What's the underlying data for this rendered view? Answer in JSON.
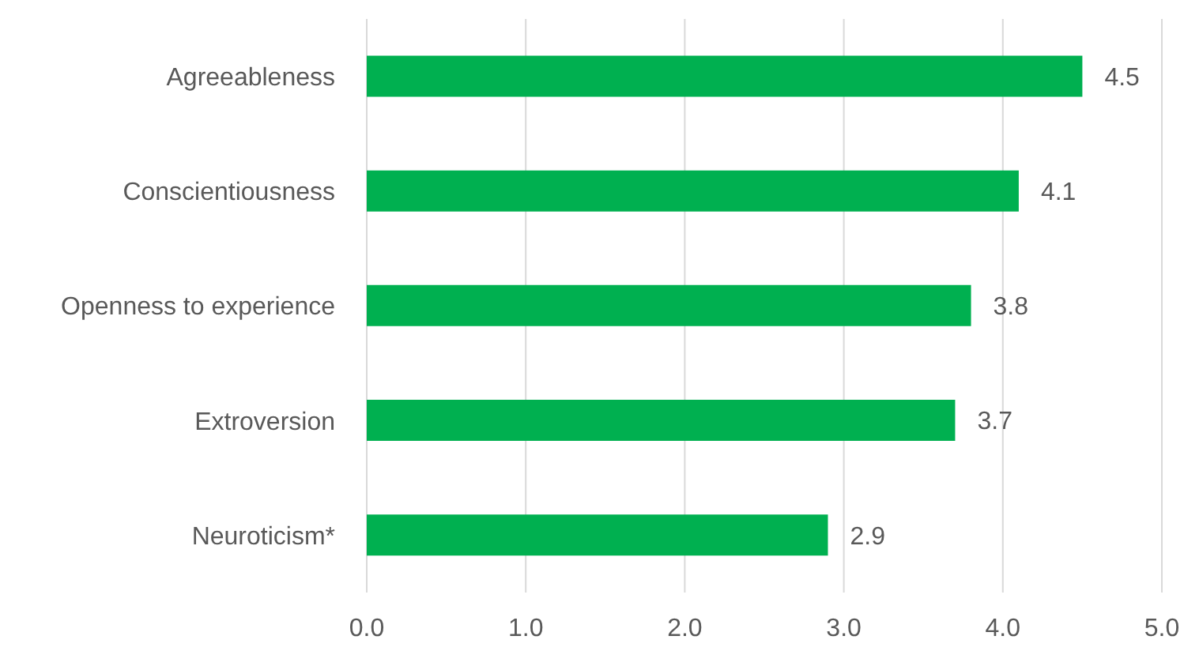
{
  "chart_data": {
    "type": "bar",
    "orientation": "horizontal",
    "categories": [
      "Agreeableness",
      "Conscientiousness",
      "Openness to experience",
      "Extroversion",
      "Neuroticism*"
    ],
    "values": [
      4.5,
      4.1,
      3.8,
      3.7,
      2.9
    ],
    "color": "#00b050",
    "xlim": [
      0,
      5
    ],
    "xticks": [
      {
        "value": 0,
        "label": "0.0"
      },
      {
        "value": 1,
        "label": "1.0"
      },
      {
        "value": 2,
        "label": "2.0"
      },
      {
        "value": 3,
        "label": "3.0"
      },
      {
        "value": 4,
        "label": "4.0"
      },
      {
        "value": 5,
        "label": "5.0"
      }
    ],
    "grid": "x",
    "data_labels": true
  }
}
